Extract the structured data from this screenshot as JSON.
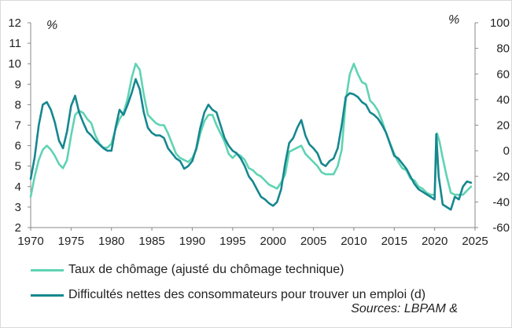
{
  "chart_data": {
    "type": "line",
    "title": "",
    "left_unit": "%",
    "right_unit": "%",
    "x_range": [
      1970,
      2025
    ],
    "x_ticks": [
      "1970",
      "1975",
      "1980",
      "1985",
      "1990",
      "1995",
      "2000",
      "2005",
      "2010",
      "2015",
      "2020",
      "2025"
    ],
    "y_left": {
      "range": [
        2,
        12
      ],
      "ticks": [
        "2",
        "3",
        "4",
        "5",
        "6",
        "7",
        "8",
        "9",
        "10",
        "11",
        "12"
      ]
    },
    "y_right": {
      "range": [
        -60,
        100
      ],
      "ticks": [
        "-60",
        "-40",
        "-20",
        "0",
        "20",
        "40",
        "60",
        "80",
        "100"
      ]
    },
    "grid": false,
    "legend_position": "bottom",
    "series": [
      {
        "name": "Taux de chômage (ajusté du chômage technique)",
        "axis": "left",
        "color": "#5fd3b3",
        "points": [
          [
            1970.0,
            3.5
          ],
          [
            1970.5,
            4.5
          ],
          [
            1971.0,
            5.3
          ],
          [
            1971.5,
            5.8
          ],
          [
            1972.0,
            6.0
          ],
          [
            1972.5,
            5.8
          ],
          [
            1973.0,
            5.5
          ],
          [
            1973.5,
            5.1
          ],
          [
            1974.0,
            4.9
          ],
          [
            1974.5,
            5.3
          ],
          [
            1975.0,
            6.5
          ],
          [
            1975.5,
            7.5
          ],
          [
            1976.0,
            7.7
          ],
          [
            1976.5,
            7.6
          ],
          [
            1977.0,
            7.3
          ],
          [
            1977.5,
            7.1
          ],
          [
            1978.0,
            6.5
          ],
          [
            1978.5,
            6.1
          ],
          [
            1979.0,
            5.9
          ],
          [
            1979.5,
            5.9
          ],
          [
            1980.0,
            6.1
          ],
          [
            1980.5,
            6.8
          ],
          [
            1981.0,
            7.3
          ],
          [
            1981.5,
            7.6
          ],
          [
            1982.0,
            8.3
          ],
          [
            1982.5,
            9.3
          ],
          [
            1983.0,
            10.0
          ],
          [
            1983.5,
            9.7
          ],
          [
            1984.0,
            8.5
          ],
          [
            1984.5,
            7.5
          ],
          [
            1985.0,
            7.3
          ],
          [
            1985.5,
            7.1
          ],
          [
            1986.0,
            7.0
          ],
          [
            1986.5,
            7.0
          ],
          [
            1987.0,
            6.6
          ],
          [
            1987.5,
            6.1
          ],
          [
            1988.0,
            5.6
          ],
          [
            1988.5,
            5.4
          ],
          [
            1989.0,
            5.3
          ],
          [
            1989.5,
            5.2
          ],
          [
            1990.0,
            5.4
          ],
          [
            1990.5,
            5.8
          ],
          [
            1991.0,
            6.6
          ],
          [
            1991.5,
            7.2
          ],
          [
            1992.0,
            7.5
          ],
          [
            1992.5,
            7.5
          ],
          [
            1993.0,
            7.0
          ],
          [
            1993.5,
            6.6
          ],
          [
            1994.0,
            6.2
          ],
          [
            1994.5,
            5.6
          ],
          [
            1995.0,
            5.4
          ],
          [
            1995.5,
            5.6
          ],
          [
            1996.0,
            5.5
          ],
          [
            1996.5,
            5.3
          ],
          [
            1997.0,
            4.9
          ],
          [
            1997.5,
            4.8
          ],
          [
            1998.0,
            4.6
          ],
          [
            1998.5,
            4.5
          ],
          [
            1999.0,
            4.3
          ],
          [
            1999.5,
            4.1
          ],
          [
            2000.0,
            4.0
          ],
          [
            2000.5,
            3.9
          ],
          [
            2001.0,
            4.2
          ],
          [
            2001.5,
            4.6
          ],
          [
            2002.0,
            5.7
          ],
          [
            2002.5,
            5.8
          ],
          [
            2003.0,
            5.9
          ],
          [
            2003.5,
            6.0
          ],
          [
            2004.0,
            5.6
          ],
          [
            2004.5,
            5.4
          ],
          [
            2005.0,
            5.2
          ],
          [
            2005.5,
            5.0
          ],
          [
            2006.0,
            4.7
          ],
          [
            2006.5,
            4.6
          ],
          [
            2007.0,
            4.6
          ],
          [
            2007.5,
            4.6
          ],
          [
            2008.0,
            5.0
          ],
          [
            2008.5,
            5.8
          ],
          [
            2009.0,
            8.2
          ],
          [
            2009.5,
            9.5
          ],
          [
            2010.0,
            10.0
          ],
          [
            2010.5,
            9.5
          ],
          [
            2011.0,
            9.1
          ],
          [
            2011.5,
            9.0
          ],
          [
            2012.0,
            8.2
          ],
          [
            2012.5,
            8.0
          ],
          [
            2013.0,
            7.7
          ],
          [
            2013.5,
            7.2
          ],
          [
            2014.0,
            6.6
          ],
          [
            2014.5,
            6.1
          ],
          [
            2015.0,
            5.6
          ],
          [
            2015.5,
            5.2
          ],
          [
            2016.0,
            4.9
          ],
          [
            2016.5,
            4.8
          ],
          [
            2017.0,
            4.4
          ],
          [
            2017.5,
            4.3
          ],
          [
            2018.0,
            4.0
          ],
          [
            2018.5,
            3.9
          ],
          [
            2019.0,
            3.7
          ],
          [
            2019.5,
            3.6
          ],
          [
            2020.0,
            3.6
          ],
          [
            2020.3,
            6.6
          ],
          [
            2020.6,
            6.2
          ],
          [
            2021.0,
            5.4
          ],
          [
            2021.5,
            4.5
          ],
          [
            2022.0,
            3.7
          ],
          [
            2022.5,
            3.6
          ],
          [
            2023.0,
            3.6
          ],
          [
            2023.5,
            3.6
          ],
          [
            2024.0,
            3.8
          ],
          [
            2024.5,
            4.0
          ]
        ]
      },
      {
        "name": "Difficultés nettes des consommateurs pour trouver un emploi (d)",
        "axis": "right",
        "color": "#16878f",
        "points": [
          [
            1970.0,
            -22
          ],
          [
            1970.5,
            -5
          ],
          [
            1971.0,
            20
          ],
          [
            1971.5,
            36
          ],
          [
            1972.0,
            38
          ],
          [
            1972.5,
            32
          ],
          [
            1973.0,
            22
          ],
          [
            1973.5,
            8
          ],
          [
            1974.0,
            2
          ],
          [
            1974.5,
            15
          ],
          [
            1975.0,
            35
          ],
          [
            1975.5,
            43
          ],
          [
            1976.0,
            30
          ],
          [
            1976.5,
            22
          ],
          [
            1977.0,
            15
          ],
          [
            1977.5,
            12
          ],
          [
            1978.0,
            8
          ],
          [
            1978.5,
            5
          ],
          [
            1979.0,
            2
          ],
          [
            1979.5,
            0
          ],
          [
            1980.0,
            0
          ],
          [
            1980.5,
            18
          ],
          [
            1981.0,
            32
          ],
          [
            1981.5,
            28
          ],
          [
            1982.0,
            36
          ],
          [
            1982.5,
            45
          ],
          [
            1983.0,
            56
          ],
          [
            1983.5,
            48
          ],
          [
            1984.0,
            30
          ],
          [
            1984.5,
            18
          ],
          [
            1985.0,
            14
          ],
          [
            1985.5,
            12
          ],
          [
            1986.0,
            12
          ],
          [
            1986.5,
            10
          ],
          [
            1987.0,
            2
          ],
          [
            1987.5,
            -2
          ],
          [
            1988.0,
            -6
          ],
          [
            1988.5,
            -8
          ],
          [
            1989.0,
            -14
          ],
          [
            1989.5,
            -12
          ],
          [
            1990.0,
            -8
          ],
          [
            1990.5,
            2
          ],
          [
            1991.0,
            18
          ],
          [
            1991.5,
            30
          ],
          [
            1992.0,
            36
          ],
          [
            1992.5,
            32
          ],
          [
            1993.0,
            30
          ],
          [
            1993.5,
            20
          ],
          [
            1994.0,
            10
          ],
          [
            1994.5,
            4
          ],
          [
            1995.0,
            0
          ],
          [
            1995.5,
            -2
          ],
          [
            1996.0,
            -6
          ],
          [
            1996.5,
            -12
          ],
          [
            1997.0,
            -20
          ],
          [
            1997.5,
            -24
          ],
          [
            1998.0,
            -30
          ],
          [
            1998.5,
            -36
          ],
          [
            1999.0,
            -38
          ],
          [
            1999.5,
            -41
          ],
          [
            2000.0,
            -43
          ],
          [
            2000.5,
            -40
          ],
          [
            2001.0,
            -30
          ],
          [
            2001.5,
            -10
          ],
          [
            2002.0,
            6
          ],
          [
            2002.5,
            10
          ],
          [
            2003.0,
            18
          ],
          [
            2003.5,
            24
          ],
          [
            2004.0,
            12
          ],
          [
            2004.5,
            5
          ],
          [
            2005.0,
            2
          ],
          [
            2005.5,
            -2
          ],
          [
            2006.0,
            -10
          ],
          [
            2006.5,
            -12
          ],
          [
            2007.0,
            -8
          ],
          [
            2007.5,
            -6
          ],
          [
            2008.0,
            2
          ],
          [
            2008.5,
            20
          ],
          [
            2009.0,
            42
          ],
          [
            2009.5,
            45
          ],
          [
            2010.0,
            44
          ],
          [
            2010.5,
            42
          ],
          [
            2011.0,
            38
          ],
          [
            2011.5,
            36
          ],
          [
            2012.0,
            30
          ],
          [
            2012.5,
            28
          ],
          [
            2013.0,
            25
          ],
          [
            2013.5,
            20
          ],
          [
            2014.0,
            14
          ],
          [
            2014.5,
            5
          ],
          [
            2015.0,
            -4
          ],
          [
            2015.5,
            -6
          ],
          [
            2016.0,
            -10
          ],
          [
            2016.5,
            -14
          ],
          [
            2017.0,
            -20
          ],
          [
            2017.5,
            -26
          ],
          [
            2018.0,
            -30
          ],
          [
            2018.5,
            -32
          ],
          [
            2019.0,
            -34
          ],
          [
            2019.5,
            -36
          ],
          [
            2020.0,
            -38
          ],
          [
            2020.2,
            13
          ],
          [
            2020.5,
            -20
          ],
          [
            2021.0,
            -42
          ],
          [
            2021.5,
            -44
          ],
          [
            2022.0,
            -46
          ],
          [
            2022.5,
            -36
          ],
          [
            2023.0,
            -38
          ],
          [
            2023.5,
            -28
          ],
          [
            2024.0,
            -24
          ],
          [
            2024.5,
            -25
          ]
        ]
      }
    ]
  },
  "source": "Sources: LBPAM &"
}
